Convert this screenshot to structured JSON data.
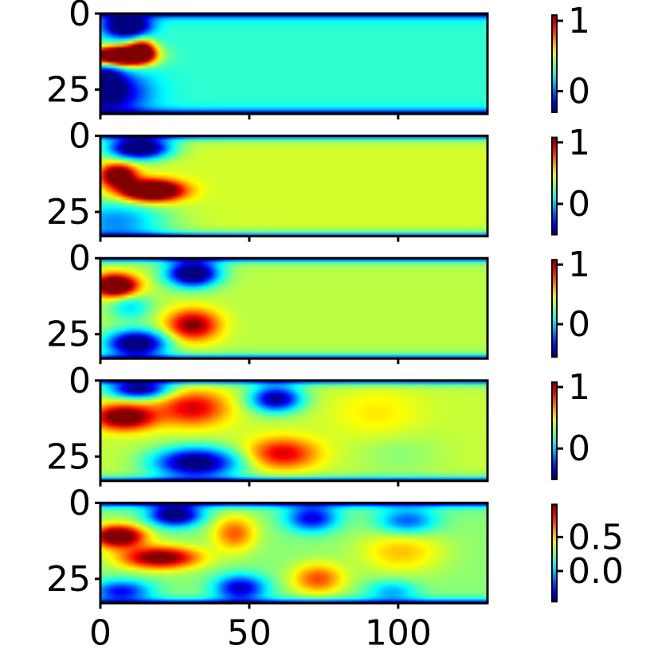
{
  "chart_data": {
    "type": "heatmap",
    "colormap": "jet",
    "panel_count": 5,
    "xlim": [
      0,
      130
    ],
    "ylim": [
      33,
      0
    ],
    "x_ticks": [
      0,
      50,
      100
    ],
    "y_ticks": [
      0,
      25
    ],
    "panels": [
      {
        "color_min": -0.3,
        "color_max": 1.08,
        "colorbar_ticks": [
          1,
          0
        ],
        "colorbar_tick_labels": [
          "1",
          "0"
        ],
        "field": {
          "base": 0.28,
          "features": [
            {
              "x": 9,
              "y": 4,
              "sx": 5,
              "sy": 2.5,
              "v": -1.0
            },
            {
              "x": 6,
              "y": 14,
              "sx": 7,
              "sy": 2.2,
              "v": 1.6
            },
            {
              "x": 14,
              "y": 12,
              "sx": 3,
              "sy": 2.5,
              "v": 0.8
            },
            {
              "x": 3,
              "y": 26,
              "sx": 9,
              "sy": 5,
              "v": -0.6
            },
            {
              "x": 2,
              "y": 20,
              "sx": 4,
              "sy": 5,
              "v": -0.4
            }
          ]
        }
      },
      {
        "color_min": -0.5,
        "color_max": 1.08,
        "colorbar_ticks": [
          1,
          0
        ],
        "colorbar_tick_labels": [
          "1",
          "0"
        ],
        "field": {
          "base": 0.42,
          "features": [
            {
              "x": 13,
              "y": 4,
              "sx": 7,
              "sy": 2.5,
              "v": -1.2
            },
            {
              "x": 6,
              "y": 13,
              "sx": 4,
              "sy": 2.5,
              "v": 1.0
            },
            {
              "x": 17,
              "y": 18,
              "sx": 7,
              "sy": 2.3,
              "v": 1.4
            },
            {
              "x": 5,
              "y": 28,
              "sx": 12,
              "sy": 5,
              "v": -0.5
            }
          ]
        }
      },
      {
        "color_min": -0.55,
        "color_max": 1.08,
        "colorbar_ticks": [
          1,
          0
        ],
        "colorbar_tick_labels": [
          "1",
          "0"
        ],
        "field": {
          "base": 0.36,
          "features": [
            {
              "x": 31,
              "y": 5,
              "sx": 6,
              "sy": 3,
              "v": -1.15
            },
            {
              "x": 5,
              "y": 9,
              "sx": 5,
              "sy": 2.5,
              "v": 1.2
            },
            {
              "x": 31,
              "y": 22,
              "sx": 6,
              "sy": 3.5,
              "v": 0.75
            },
            {
              "x": 12,
              "y": 28,
              "sx": 7,
              "sy": 3,
              "v": -1.1
            },
            {
              "x": 10,
              "y": 16,
              "sx": 5,
              "sy": 3,
              "v": -0.35
            }
          ]
        }
      },
      {
        "color_min": -0.5,
        "color_max": 1.08,
        "colorbar_ticks": [
          1,
          0
        ],
        "colorbar_tick_labels": [
          "1",
          "0"
        ],
        "field": {
          "base": 0.4,
          "features": [
            {
              "x": 13,
              "y": 3,
              "sx": 7,
              "sy": 2,
              "v": -0.9
            },
            {
              "x": 8,
              "y": 12,
              "sx": 7,
              "sy": 2.8,
              "v": 0.9
            },
            {
              "x": 31,
              "y": 9,
              "sx": 8,
              "sy": 4,
              "v": 0.55
            },
            {
              "x": 59,
              "y": 6,
              "sx": 6,
              "sy": 3,
              "v": -0.9
            },
            {
              "x": 61,
              "y": 24,
              "sx": 8,
              "sy": 3.5,
              "v": 0.55
            },
            {
              "x": 32,
              "y": 27,
              "sx": 10,
              "sy": 3.5,
              "v": -1.0
            },
            {
              "x": 93,
              "y": 11,
              "sx": 10,
              "sy": 6,
              "v": 0.12
            },
            {
              "x": 100,
              "y": 24,
              "sx": 10,
              "sy": 5,
              "v": -0.1
            }
          ]
        }
      },
      {
        "color_min": -0.45,
        "color_max": 0.98,
        "colorbar_ticks": [
          0.5,
          0.0
        ],
        "colorbar_tick_labels": [
          "0.5",
          "0.0"
        ],
        "field": {
          "base": 0.28,
          "features": [
            {
              "x": 25,
              "y": 4,
              "sx": 6,
              "sy": 2.5,
              "v": -0.85
            },
            {
              "x": 6,
              "y": 11,
              "sx": 6,
              "sy": 2.5,
              "v": 0.95
            },
            {
              "x": 20,
              "y": 18,
              "sx": 9,
              "sy": 2.5,
              "v": 0.8
            },
            {
              "x": 45,
              "y": 10,
              "sx": 5,
              "sy": 4,
              "v": 0.4
            },
            {
              "x": 71,
              "y": 5,
              "sx": 6,
              "sy": 3,
              "v": -0.6
            },
            {
              "x": 103,
              "y": 6,
              "sx": 7,
              "sy": 3,
              "v": -0.45
            },
            {
              "x": 73,
              "y": 25,
              "sx": 6,
              "sy": 3.5,
              "v": 0.42
            },
            {
              "x": 47,
              "y": 28,
              "sx": 6,
              "sy": 3,
              "v": -0.65
            },
            {
              "x": 7,
              "y": 29,
              "sx": 7,
              "sy": 2.5,
              "v": -0.55
            },
            {
              "x": 101,
              "y": 16,
              "sx": 10,
              "sy": 5,
              "v": 0.25
            },
            {
              "x": 98,
              "y": 29,
              "sx": 6,
              "sy": 2.5,
              "v": -0.3
            }
          ]
        }
      }
    ]
  }
}
